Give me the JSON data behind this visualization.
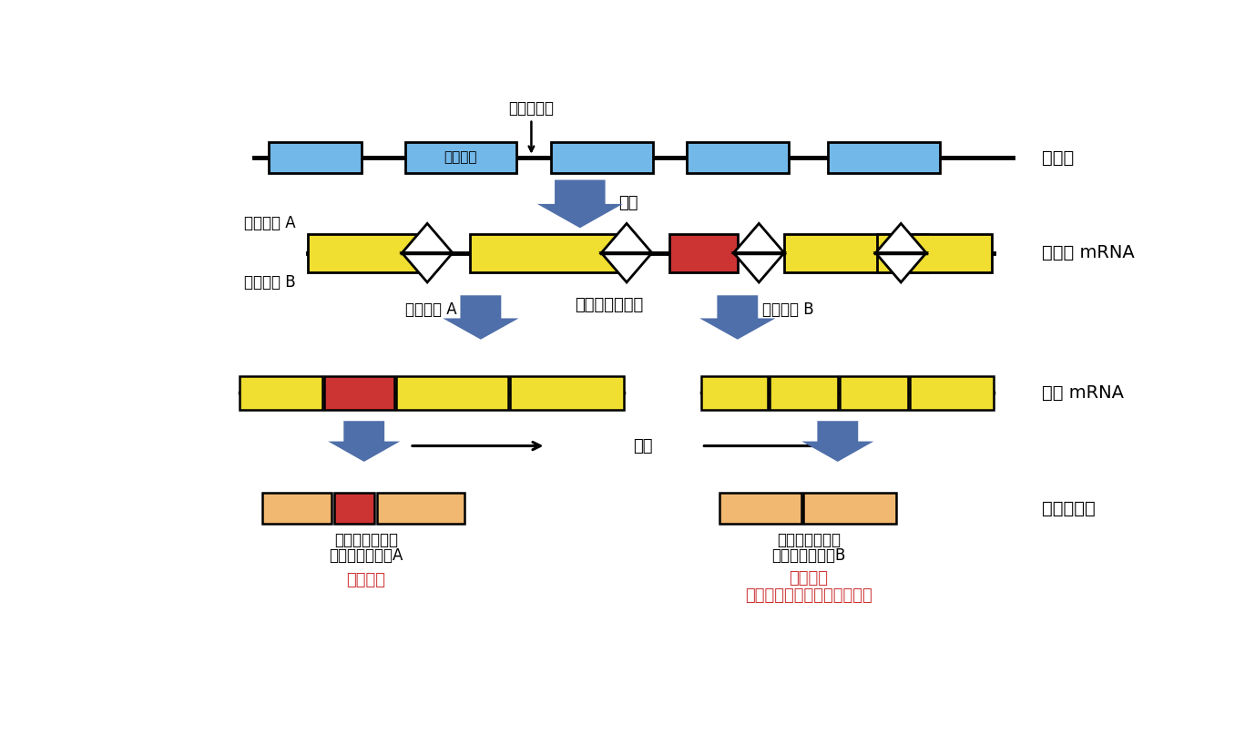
{
  "bg_color": "#ffffff",
  "blue": "#4f6faa",
  "yellow": "#f0de30",
  "red": "#cc3333",
  "light_orange": "#f0b870",
  "sky_blue": "#72b8e8",
  "gene_label": "遺伝子",
  "intron_label": "イントロン",
  "exon_label": "エクソン",
  "transcription_label": "転写",
  "pre_mrna_label": "未成熟 mRNA",
  "splicing_label": "スプライシング",
  "pattern_a": "パターン A",
  "pattern_b": "パターン B",
  "mature_mrna_label": "成熟 mRNA",
  "translation_label": "翻訳",
  "protein_label": "タンパク質",
  "isoform_a_line1": "スプライシング",
  "isoform_a_line2": "アイソフォームA",
  "isoform_b_line1": "スプライシング",
  "isoform_b_line2": "アイソフォームB",
  "function_known": "機能既知",
  "function_unknown_line1": "機能未知",
  "function_unknown_line2": "（スプライシングの失敗？）"
}
